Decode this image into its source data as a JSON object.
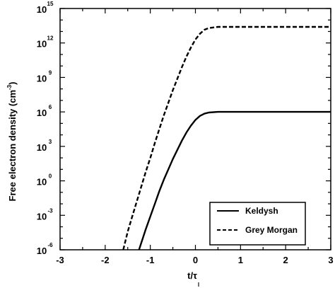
{
  "chart_data": {
    "type": "line",
    "xlabel": "t/τ",
    "xlabel_sub": "l",
    "ylabel": "Free electron density (cm",
    "ylabel_unit_exp": "-3",
    "ylabel_close": ")",
    "x_range": [
      -3,
      3
    ],
    "y_range": [
      -6,
      15
    ],
    "y_scale": "log10",
    "x_ticks": [
      -3,
      -2,
      -1,
      0,
      1,
      2,
      3
    ],
    "y_ticks": [
      {
        "value": -6,
        "base": "10",
        "exp": "-6"
      },
      {
        "value": -3,
        "base": "10",
        "exp": "-3"
      },
      {
        "value": 0,
        "base": "10",
        "exp": "0"
      },
      {
        "value": 3,
        "base": "10",
        "exp": "3"
      },
      {
        "value": 6,
        "base": "10",
        "exp": "6"
      },
      {
        "value": 9,
        "base": "10",
        "exp": "9"
      },
      {
        "value": 12,
        "base": "10",
        "exp": "12"
      },
      {
        "value": 15,
        "base": "10",
        "exp": "15"
      }
    ],
    "legend_position": "lower-right",
    "series": [
      {
        "name": "Keldysh",
        "style": "solid",
        "x": [
          -1.25,
          -1.1,
          -1.0,
          -0.9,
          -0.8,
          -0.7,
          -0.6,
          -0.5,
          -0.4,
          -0.3,
          -0.2,
          -0.1,
          0.0,
          0.1,
          0.2,
          0.3,
          0.5,
          1.0,
          2.0,
          3.0
        ],
        "y": [
          -6.0,
          -4.2,
          -3.1,
          -2.0,
          -0.9,
          0.1,
          1.0,
          1.9,
          2.7,
          3.5,
          4.2,
          4.8,
          5.3,
          5.65,
          5.85,
          5.95,
          6.0,
          6.0,
          6.0,
          6.0
        ]
      },
      {
        "name": "Grey Morgan",
        "style": "dashed",
        "x": [
          -1.6,
          -1.5,
          -1.4,
          -1.3,
          -1.2,
          -1.1,
          -1.0,
          -0.9,
          -0.8,
          -0.7,
          -0.6,
          -0.5,
          -0.4,
          -0.3,
          -0.2,
          -0.1,
          0.0,
          0.1,
          0.2,
          0.3,
          0.5,
          1.0,
          2.0,
          3.0
        ],
        "y": [
          -6.0,
          -4.4,
          -3.1,
          -1.8,
          -0.5,
          0.8,
          2.0,
          3.3,
          4.5,
          5.7,
          6.8,
          7.9,
          8.9,
          9.9,
          10.8,
          11.6,
          12.3,
          12.8,
          13.15,
          13.3,
          13.4,
          13.4,
          13.4,
          13.4
        ]
      }
    ],
    "colors": {
      "lines": "#000000",
      "background": "#ffffff"
    }
  }
}
